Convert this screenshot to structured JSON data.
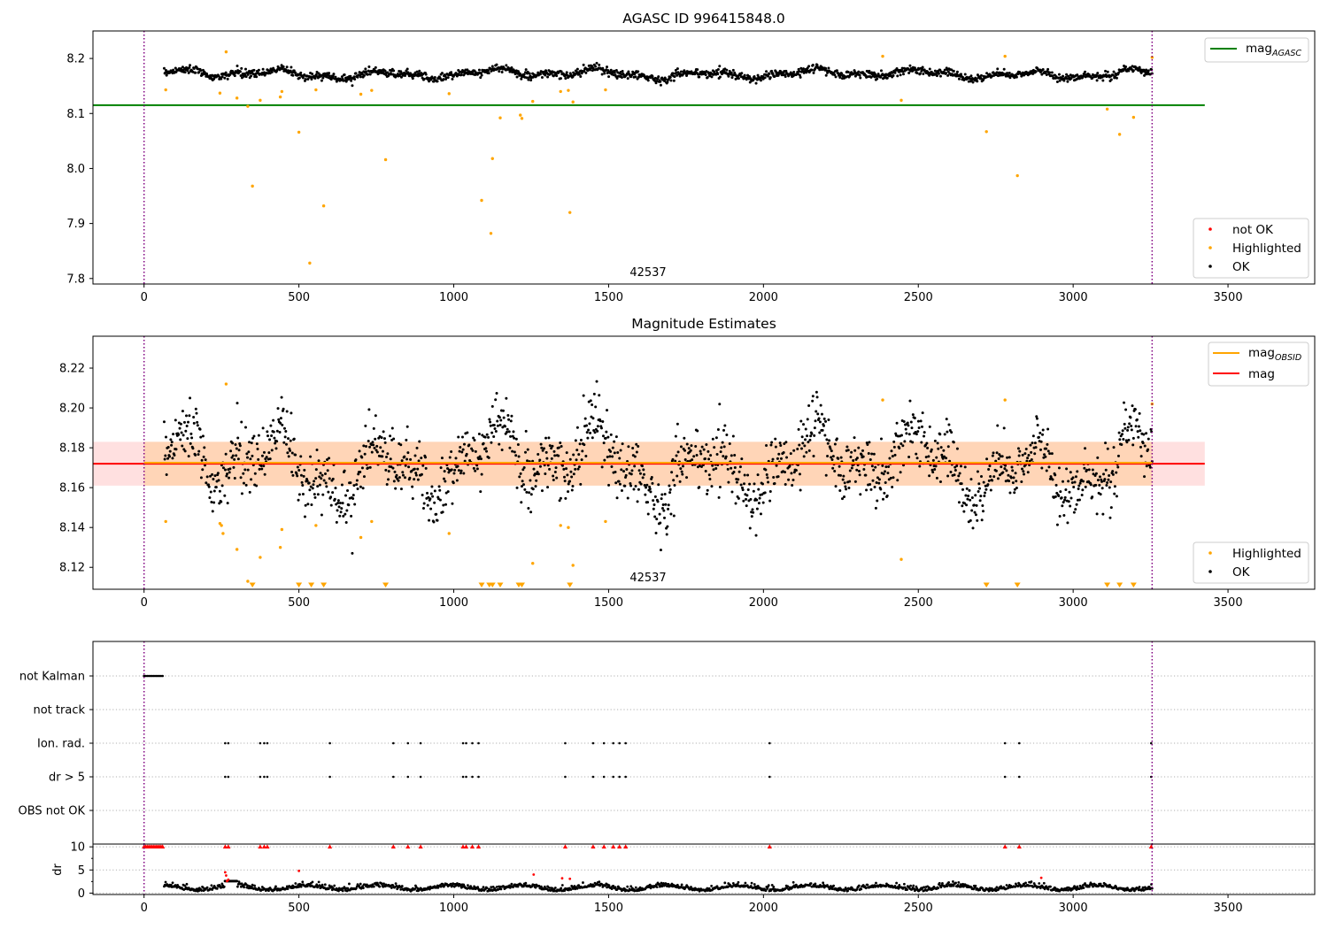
{
  "chart_data": [
    {
      "type": "scatter",
      "title": "AGASC ID 996415848.0",
      "xlim": [
        -165,
        3780
      ],
      "ylim": [
        7.79,
        8.25
      ],
      "xticks": [
        0,
        500,
        1000,
        1500,
        2000,
        2500,
        3000,
        3500
      ],
      "yticks": [
        7.8,
        7.9,
        8.0,
        8.1,
        8.2
      ],
      "ytick_labels": [
        "7.8",
        "7.9",
        "8.0",
        "8.1",
        "8.2"
      ],
      "annotation": "42537",
      "vlines": [
        0,
        3255
      ],
      "hline_mag_agasc": {
        "value": 8.115,
        "x_range": [
          -165,
          3425
        ],
        "color": "#008000"
      },
      "ok_series": {
        "x_range": [
          65,
          3255
        ],
        "color": "#000000"
      },
      "highlighted_points": [
        [
          70,
          8.143
        ],
        [
          245,
          8.137
        ],
        [
          265,
          8.212
        ],
        [
          300,
          8.128
        ],
        [
          335,
          8.113
        ],
        [
          350,
          7.968
        ],
        [
          375,
          8.124
        ],
        [
          440,
          8.13
        ],
        [
          445,
          8.14
        ],
        [
          500,
          8.066
        ],
        [
          535,
          7.828
        ],
        [
          555,
          8.143
        ],
        [
          580,
          7.932
        ],
        [
          700,
          8.135
        ],
        [
          735,
          8.142
        ],
        [
          780,
          8.016
        ],
        [
          985,
          8.136
        ],
        [
          1090,
          7.942
        ],
        [
          1120,
          7.882
        ],
        [
          1125,
          8.018
        ],
        [
          1150,
          8.092
        ],
        [
          1215,
          8.097
        ],
        [
          1220,
          8.091
        ],
        [
          1255,
          8.122
        ],
        [
          1345,
          8.14
        ],
        [
          1370,
          8.142
        ],
        [
          1375,
          7.92
        ],
        [
          1385,
          8.121
        ],
        [
          1490,
          8.143
        ],
        [
          2385,
          8.204
        ],
        [
          2445,
          8.124
        ],
        [
          2720,
          8.067
        ],
        [
          2780,
          8.204
        ],
        [
          2820,
          7.987
        ],
        [
          3110,
          8.108
        ],
        [
          3150,
          8.062
        ],
        [
          3195,
          8.093
        ],
        [
          3255,
          8.202
        ]
      ],
      "legend_line": {
        "label": "mag",
        "subscript": "AGASC"
      },
      "legend_points": [
        "not OK",
        "Highlighted",
        "OK"
      ],
      "legend_colors": [
        "#ff0000",
        "#ffa500",
        "#000000"
      ]
    },
    {
      "type": "scatter",
      "title": "Magnitude Estimates",
      "xlim": [
        -165,
        3780
      ],
      "ylim": [
        8.109,
        8.236
      ],
      "xticks": [
        0,
        500,
        1000,
        1500,
        2000,
        2500,
        3000,
        3500
      ],
      "yticks": [
        8.12,
        8.14,
        8.16,
        8.18,
        8.2,
        8.22
      ],
      "ytick_labels": [
        "8.12",
        "8.14",
        "8.16",
        "8.18",
        "8.20",
        "8.22"
      ],
      "annotation": "42537",
      "vlines": [
        0,
        3255
      ],
      "mag": {
        "value": 8.172,
        "band": [
          8.161,
          8.183
        ],
        "x_range": [
          -165,
          3425
        ],
        "color": "#ff0000"
      },
      "mag_obsid": {
        "value": 8.1725,
        "band": [
          8.161,
          8.183
        ],
        "x_range": [
          0,
          3255
        ],
        "color": "#ffa500"
      },
      "ok_series": {
        "x_range": [
          65,
          3255
        ],
        "color": "#000000"
      },
      "highlighted_points": [
        [
          70,
          8.143
        ],
        [
          245,
          8.142
        ],
        [
          250,
          8.141
        ],
        [
          255,
          8.137
        ],
        [
          265,
          8.212
        ],
        [
          300,
          8.129
        ],
        [
          335,
          8.113
        ],
        [
          375,
          8.125
        ],
        [
          440,
          8.13
        ],
        [
          445,
          8.139
        ],
        [
          555,
          8.141
        ],
        [
          700,
          8.135
        ],
        [
          735,
          8.143
        ],
        [
          985,
          8.137
        ],
        [
          1255,
          8.122
        ],
        [
          1345,
          8.141
        ],
        [
          1370,
          8.14
        ],
        [
          1385,
          8.121
        ],
        [
          1490,
          8.143
        ],
        [
          2385,
          8.204
        ],
        [
          2445,
          8.124
        ],
        [
          2780,
          8.204
        ],
        [
          3255,
          8.202
        ]
      ],
      "below_range_markers_x": [
        350,
        500,
        540,
        580,
        780,
        1090,
        1115,
        1125,
        1150,
        1210,
        1220,
        1375,
        2720,
        2820,
        3110,
        3150,
        3195
      ],
      "legend_line_items": [
        {
          "label": "mag",
          "subscript": "OBSID",
          "color": "#ffa500"
        },
        {
          "label": "mag",
          "subscript": "",
          "color": "#ff0000"
        }
      ],
      "legend_points": [
        "Highlighted",
        "OK"
      ],
      "legend_colors": [
        "#ffa500",
        "#000000"
      ]
    },
    {
      "type": "scatter",
      "title": "",
      "xlim": [
        -165,
        3780
      ],
      "xticks": [
        0,
        500,
        1000,
        1500,
        2000,
        2500,
        3000,
        3500
      ],
      "vlines": [
        0,
        3255
      ],
      "flag_rows": [
        "not Kalman",
        "not track",
        "Ion. rad.",
        "dr > 5",
        "OBS not OK"
      ],
      "flags": {
        "not Kalman": [
          0,
          5,
          10,
          15,
          20,
          25,
          30,
          35,
          40,
          45,
          50,
          55,
          60
        ],
        "not track": [],
        "Ion. rad.": [
          262,
          272,
          375,
          388,
          398,
          600,
          805,
          852,
          893,
          1030,
          1040,
          1060,
          1080,
          1360,
          1450,
          1485,
          1515,
          1535,
          1555,
          2020,
          2780,
          2826,
          3252
        ],
        "dr > 5": [
          262,
          272,
          375,
          388,
          398,
          600,
          805,
          852,
          893,
          1030,
          1040,
          1060,
          1080,
          1360,
          1450,
          1485,
          1515,
          1535,
          1555,
          2020,
          2780,
          2826,
          3252
        ],
        "OBS not OK": []
      },
      "dr_axis": {
        "ylabel": "dr",
        "ylim": [
          -0.3,
          10.6
        ],
        "yticks": [
          0,
          5,
          10
        ],
        "ytick_labels": [
          "0",
          "5",
          "10"
        ],
        "clipped_at_10_x": [
          0,
          5,
          10,
          15,
          20,
          25,
          30,
          35,
          40,
          45,
          50,
          55,
          60,
          262,
          272,
          375,
          388,
          398,
          600,
          805,
          852,
          893,
          1030,
          1040,
          1060,
          1080,
          1360,
          1450,
          1485,
          1515,
          1535,
          1555,
          2020,
          2780,
          2826,
          3252
        ],
        "red_points": [
          [
            262,
            4.5
          ],
          [
            265,
            3.8
          ],
          [
            268,
            2.6
          ],
          [
            272,
            2.9
          ],
          [
            500,
            4.8
          ],
          [
            1258,
            4.0
          ],
          [
            1350,
            3.2
          ],
          [
            1375,
            3.1
          ],
          [
            2897,
            3.3
          ]
        ],
        "ok_series": {
          "x_range": [
            65,
            3255
          ],
          "typical_range": [
            0.2,
            2.2
          ]
        }
      }
    }
  ]
}
